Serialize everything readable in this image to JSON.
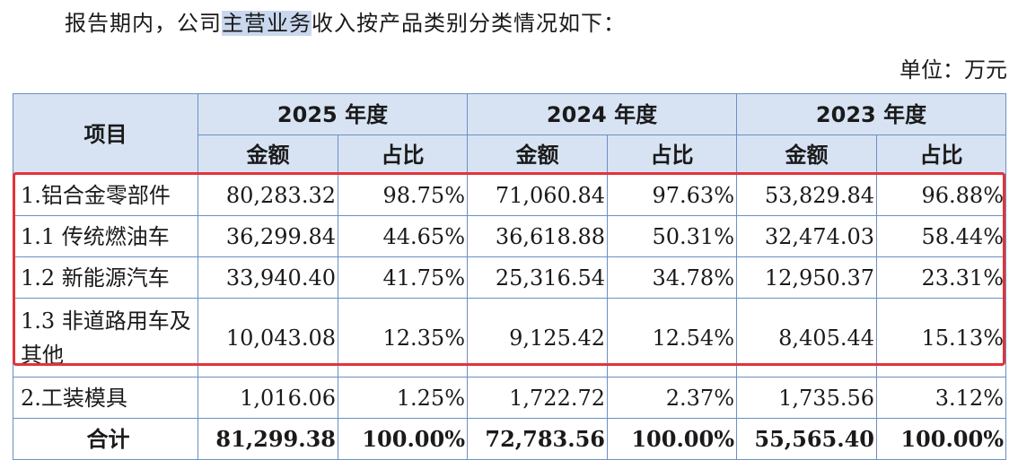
{
  "intro": {
    "before": "报告期内，公司",
    "highlight": "主营业务",
    "after": "收入按产品类别分类情况如下："
  },
  "unit": "单位：万元",
  "table": {
    "header": {
      "item": "项目",
      "years": [
        "2025 年度",
        "2024 年度",
        "2023 年度"
      ],
      "amount": "金额",
      "ratio": "占比"
    },
    "rows": [
      {
        "label": "1.铝合金零部件",
        "values": [
          "80,283.32",
          "98.75%",
          "71,060.84",
          "97.63%",
          "53,829.84",
          "96.88%"
        ]
      },
      {
        "label": "1.1 传统燃油车",
        "values": [
          "36,299.84",
          "44.65%",
          "36,618.88",
          "50.31%",
          "32,474.03",
          "58.44%"
        ]
      },
      {
        "label": "1.2 新能源汽车",
        "values": [
          "33,940.40",
          "41.75%",
          "25,316.54",
          "34.78%",
          "12,950.37",
          "23.31%"
        ]
      },
      {
        "label": "1.3 非道路用车及其他",
        "values": [
          "10,043.08",
          "12.35%",
          "9,125.42",
          "12.54%",
          "8,405.44",
          "15.13%"
        ]
      },
      {
        "label": "2.工装模具",
        "values": [
          "1,016.06",
          "1.25%",
          "1,722.72",
          "2.37%",
          "1,735.56",
          "3.12%"
        ]
      },
      {
        "label": "合计",
        "values": [
          "81,299.38",
          "100.00%",
          "72,783.56",
          "100.00%",
          "55,565.40",
          "100.00%"
        ]
      }
    ]
  },
  "colors": {
    "header_bg": "#d7e3f3",
    "border": "#6b8fc4",
    "highlight_box": "#e2333a",
    "text_highlight": "#c9d8ee"
  }
}
